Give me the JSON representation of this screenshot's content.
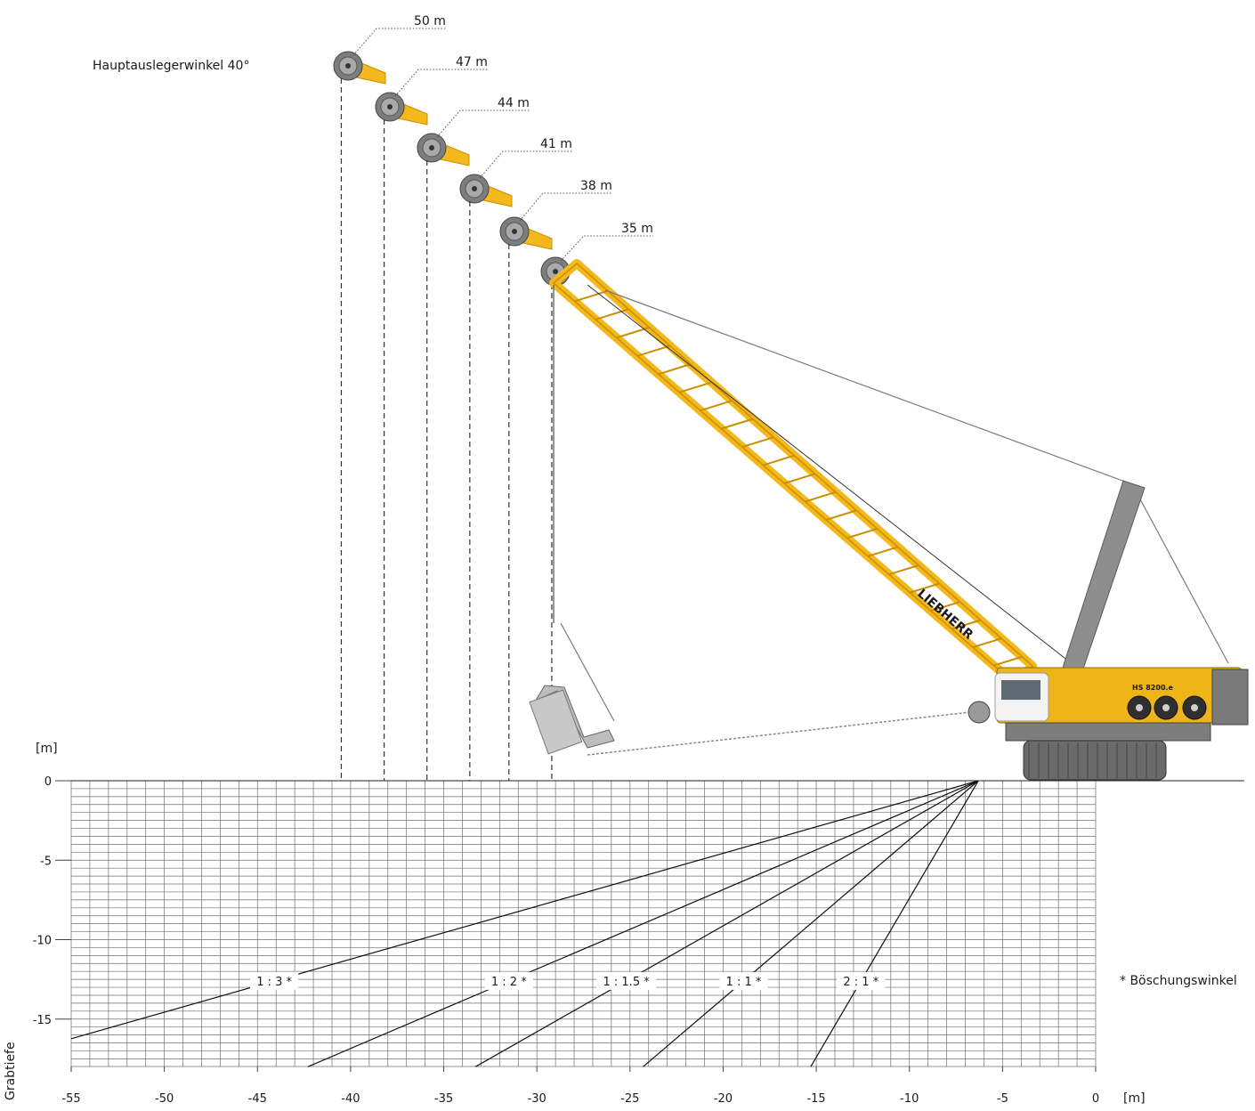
{
  "chart_data": {
    "type": "diagram",
    "title": "Hauptauslegerwinkel 40°",
    "x_unit": "[m]",
    "y_unit": "[m]",
    "ylabel": "Grabtiefe",
    "xlim": [
      -55,
      0
    ],
    "ylim": [
      -18,
      0
    ],
    "x_ticks": [
      "-55",
      "-50",
      "-45",
      "-40",
      "-35",
      "-30",
      "-25",
      "-20",
      "-15",
      "-10",
      "-5",
      "0"
    ],
    "y_ticks": [
      "0",
      "-5",
      "-10",
      "-15"
    ],
    "boom_lengths": [
      {
        "label": "50 m",
        "reach_x": -40.5
      },
      {
        "label": "47 m",
        "reach_x": -38.2
      },
      {
        "label": "44 m",
        "reach_x": -35.9
      },
      {
        "label": "41 m",
        "reach_x": -33.6
      },
      {
        "label": "38 m",
        "reach_x": -31.5
      },
      {
        "label": "35 m",
        "reach_x": -29.2
      }
    ],
    "slopes": [
      {
        "label": "1 : 3 *",
        "ratio_h_per_v": 3
      },
      {
        "label": "1 : 2 *",
        "ratio_h_per_v": 2
      },
      {
        "label": "1 : 1.5 *",
        "ratio_h_per_v": 1.5
      },
      {
        "label": "1 : 1 *",
        "ratio_h_per_v": 1
      },
      {
        "label": "2 : 1 *",
        "ratio_h_per_v": 0.5
      }
    ],
    "slope_origin_x": -6.3,
    "footnote": "* Böschungswinkel"
  },
  "machine": {
    "brand": "LIEBHERR",
    "model": "HS 8200.e",
    "colors": {
      "boom": "#f2b81c",
      "boom_edge": "#c98f00",
      "body": "#efb41a",
      "steel": "#8e8e8e",
      "dark": "#4a4a4a",
      "track": "#6a6a6a"
    }
  }
}
